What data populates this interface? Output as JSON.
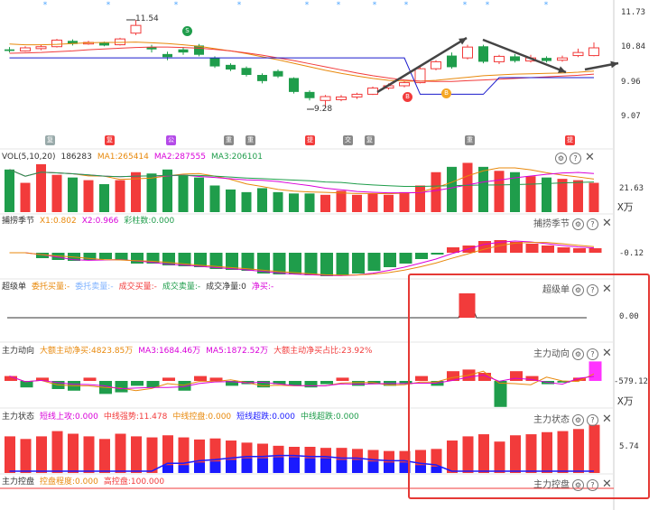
{
  "colors": {
    "up": "#f23b3b",
    "down": "#1f9d4b",
    "bg": "#ffffff",
    "axis": "#cccccc",
    "highlight": "#e53935"
  },
  "price_panel": {
    "y_ticks": [
      "11.73",
      "10.84",
      "9.96",
      "9.07"
    ],
    "high_label": "11.54",
    "low_label": "9.28",
    "signal_s": "S",
    "signal_b": "B",
    "candles": [
      {
        "o": 10.78,
        "c": 10.74,
        "h": 10.84,
        "l": 10.7
      },
      {
        "o": 10.74,
        "c": 10.82,
        "h": 10.86,
        "l": 10.72
      },
      {
        "o": 10.8,
        "c": 10.85,
        "h": 10.9,
        "l": 10.76
      },
      {
        "o": 10.85,
        "c": 11.02,
        "h": 11.05,
        "l": 10.83
      },
      {
        "o": 11.0,
        "c": 10.92,
        "h": 11.04,
        "l": 10.88
      },
      {
        "o": 10.92,
        "c": 10.96,
        "h": 11.0,
        "l": 10.9
      },
      {
        "o": 10.96,
        "c": 10.88,
        "h": 10.98,
        "l": 10.86
      },
      {
        "o": 10.9,
        "c": 11.05,
        "h": 11.08,
        "l": 10.88
      },
      {
        "o": 11.2,
        "c": 11.4,
        "h": 11.54,
        "l": 11.15
      },
      {
        "o": 10.84,
        "c": 10.78,
        "h": 10.9,
        "l": 10.7
      },
      {
        "o": 10.66,
        "c": 10.58,
        "h": 10.72,
        "l": 10.5
      },
      {
        "o": 10.78,
        "c": 10.7,
        "h": 10.84,
        "l": 10.64
      },
      {
        "o": 10.88,
        "c": 10.64,
        "h": 10.92,
        "l": 10.6
      },
      {
        "o": 10.56,
        "c": 10.34,
        "h": 10.6,
        "l": 10.3
      },
      {
        "o": 10.38,
        "c": 10.26,
        "h": 10.42,
        "l": 10.22
      },
      {
        "o": 10.3,
        "c": 10.12,
        "h": 10.34,
        "l": 10.08
      },
      {
        "o": 10.12,
        "c": 9.96,
        "h": 10.16,
        "l": 9.9
      },
      {
        "o": 10.22,
        "c": 10.08,
        "h": 10.26,
        "l": 10.04
      },
      {
        "o": 10.04,
        "c": 9.68,
        "h": 10.06,
        "l": 9.64
      },
      {
        "o": 9.68,
        "c": 9.52,
        "h": 9.72,
        "l": 9.46
      },
      {
        "o": 9.46,
        "c": 9.56,
        "h": 9.6,
        "l": 9.28
      },
      {
        "o": 9.48,
        "c": 9.55,
        "h": 9.6,
        "l": 9.44
      },
      {
        "o": 9.55,
        "c": 9.62,
        "h": 9.66,
        "l": 9.5
      },
      {
        "o": 9.62,
        "c": 9.78,
        "h": 9.82,
        "l": 9.6
      },
      {
        "o": 9.78,
        "c": 9.84,
        "h": 9.9,
        "l": 9.74
      },
      {
        "o": 9.84,
        "c": 9.92,
        "h": 9.96,
        "l": 9.8
      },
      {
        "o": 9.92,
        "c": 10.28,
        "h": 10.32,
        "l": 9.9
      },
      {
        "o": 10.28,
        "c": 10.46,
        "h": 10.5,
        "l": 10.24
      },
      {
        "o": 10.62,
        "c": 10.32,
        "h": 10.7,
        "l": 10.28
      },
      {
        "o": 10.56,
        "c": 10.84,
        "h": 10.9,
        "l": 10.52
      },
      {
        "o": 10.86,
        "c": 10.46,
        "h": 10.9,
        "l": 10.42
      },
      {
        "o": 10.46,
        "c": 10.6,
        "h": 10.64,
        "l": 10.4
      },
      {
        "o": 10.6,
        "c": 10.48,
        "h": 10.66,
        "l": 10.44
      },
      {
        "o": 10.48,
        "c": 10.56,
        "h": 10.64,
        "l": 10.44
      },
      {
        "o": 10.56,
        "c": 10.48,
        "h": 10.6,
        "l": 10.44
      },
      {
        "o": 10.5,
        "c": 10.56,
        "h": 10.62,
        "l": 10.46
      },
      {
        "o": 10.62,
        "c": 10.7,
        "h": 10.8,
        "l": 10.58
      },
      {
        "o": 10.62,
        "c": 10.82,
        "h": 10.96,
        "l": 10.6
      }
    ],
    "ma1": [
      10.92,
      10.9,
      10.9,
      10.91,
      10.93,
      10.95,
      10.96,
      10.96,
      10.97,
      10.95,
      10.93,
      10.9,
      10.86,
      10.8,
      10.74,
      10.67,
      10.59,
      10.51,
      10.42,
      10.33,
      10.24,
      10.16,
      10.09,
      10.03,
      9.98,
      9.96,
      9.96,
      9.98,
      10.02,
      10.06,
      10.1,
      10.12,
      10.14,
      10.15,
      10.16,
      10.17,
      10.19,
      10.22
    ],
    "ma2": [
      10.68,
      10.69,
      10.7,
      10.72,
      10.74,
      10.77,
      10.79,
      10.81,
      10.83,
      10.84,
      10.84,
      10.83,
      10.81,
      10.78,
      10.74,
      10.69,
      10.63,
      10.56,
      10.49,
      10.41,
      10.33,
      10.25,
      10.17,
      10.1,
      10.04,
      9.99,
      9.96,
      9.95,
      9.95,
      9.97,
      9.99,
      10.01,
      10.03,
      10.05,
      10.07,
      10.09,
      10.11,
      10.14
    ],
    "channel": [
      10.56,
      10.56,
      10.56,
      10.56,
      10.56,
      10.56,
      10.56,
      10.56,
      10.56,
      10.56,
      10.56,
      10.56,
      10.56,
      10.56,
      10.56,
      10.56,
      10.56,
      10.56,
      10.56,
      10.56,
      10.56,
      10.56,
      10.56,
      10.56,
      10.56,
      10.56,
      9.62,
      9.62,
      9.62,
      9.62,
      9.62,
      10.05,
      10.05,
      10.05,
      10.05,
      10.05,
      10.05,
      10.05
    ]
  },
  "event_bar": {
    "tags": [
      "复",
      "复",
      "公",
      "重",
      "重",
      "提",
      "交",
      "复",
      "重",
      "提"
    ]
  },
  "vol_panel": {
    "header": {
      "name": "VOL(5,10,20)",
      "value": "186283",
      "ma1": "MA1:265414",
      "ma2": "MA2:287555",
      "ma3": "MA3:206101"
    },
    "y_tick": "21.63",
    "unit": "X万",
    "values": [
      32,
      22,
      36,
      28,
      26,
      24,
      21,
      24,
      30,
      29,
      32,
      28,
      26,
      20,
      17,
      15,
      18,
      15,
      14,
      14,
      13,
      16,
      13,
      14,
      13,
      15,
      20,
      30,
      34,
      37,
      34,
      31,
      30,
      27,
      26,
      25,
      24,
      22
    ]
  },
  "bz_panel": {
    "header": {
      "name": "捕捞季节",
      "x1": "X1:0.802",
      "x2": "X2:0.966",
      "cz": "彩柱数:0.000"
    },
    "y_tick": "-0.12",
    "values": [
      0,
      0,
      -0.6,
      -0.8,
      -0.9,
      -0.8,
      -0.7,
      -0.8,
      -1.2,
      -1.2,
      -1.4,
      -1.5,
      -1.6,
      -1.8,
      -1.9,
      -2.0,
      -2.3,
      -2.4,
      -2.4,
      -2.5,
      -2.6,
      -2.5,
      -2.3,
      -2.0,
      -1.6,
      -1.2,
      -0.7,
      -0.2,
      0.6,
      0.8,
      1.3,
      1.4,
      1.2,
      1.0,
      0.8,
      0.6,
      0.5,
      0.5
    ]
  },
  "cjd_panel": {
    "header": {
      "name": "超级单",
      "wtmr": "委托买量:-",
      "wtmc": "委托卖量:-",
      "cjmr": "成交买量:-",
      "cjmc": "成交卖量:-",
      "cjjl": "成交净量:0",
      "jm": "净买:-"
    },
    "y_tick": "0.00",
    "spike_index": 29,
    "spike_value": 1
  },
  "zldx_panel": {
    "header": {
      "name": "主力动向",
      "net": "大额主动净买:4823.85万",
      "ma3": "MA3:1684.46万",
      "ma5": "MA5:1872.52万",
      "ratio": "大额主动净买占比:23.92%"
    },
    "y_tick": "-579.12",
    "unit": "X万",
    "values": [
      0.3,
      -0.4,
      0.2,
      -0.5,
      -0.6,
      0.2,
      -0.8,
      -0.7,
      -0.3,
      -0.4,
      0.2,
      -0.6,
      0.3,
      0.2,
      -0.3,
      -0.2,
      -0.4,
      -0.2,
      -0.3,
      -0.4,
      -0.2,
      0.2,
      -0.3,
      -0.2,
      -0.3,
      -0.2,
      0.3,
      -0.3,
      0.6,
      0.7,
      0.5,
      -1.6,
      0.6,
      0.3,
      -0.2,
      -0.1,
      0.2,
      1.2
    ]
  },
  "zlzt_panel": {
    "header": {
      "name": "主力状态",
      "dxsg": "短线上攻:0.000",
      "zxqs": "中线强势:11.478",
      "zxkp": "中线控盘:0.000",
      "dxcd": "短线超跌:0.000",
      "zxcd": "中线超跌:0.000"
    },
    "y_tick": "5.74",
    "values": [
      0.7,
      0.65,
      0.7,
      0.8,
      0.75,
      0.7,
      0.65,
      0.75,
      0.7,
      0.68,
      0.72,
      0.68,
      0.64,
      0.66,
      0.62,
      0.58,
      0.56,
      0.52,
      0.5,
      0.5,
      0.48,
      0.48,
      0.46,
      0.44,
      0.42,
      0.42,
      0.44,
      0.46,
      0.62,
      0.7,
      0.74,
      0.6,
      0.72,
      0.74,
      0.78,
      0.8,
      0.84,
      0.92
    ],
    "blue": [
      0,
      0,
      0,
      0,
      0,
      0,
      0,
      0,
      0,
      0,
      0.15,
      0.15,
      0.2,
      0.22,
      0.25,
      0.28,
      0.28,
      0.3,
      0.3,
      0.28,
      0.28,
      0.25,
      0.25,
      0.22,
      0.2,
      0.2,
      0.15,
      0.12,
      0,
      0,
      0,
      0,
      0,
      0,
      0,
      0,
      0,
      0
    ]
  },
  "zlkp_panel": {
    "header": {
      "name": "主力控盘",
      "kpcd": "控盘程度:0.000",
      "gkp": "高控盘:100.000"
    }
  }
}
